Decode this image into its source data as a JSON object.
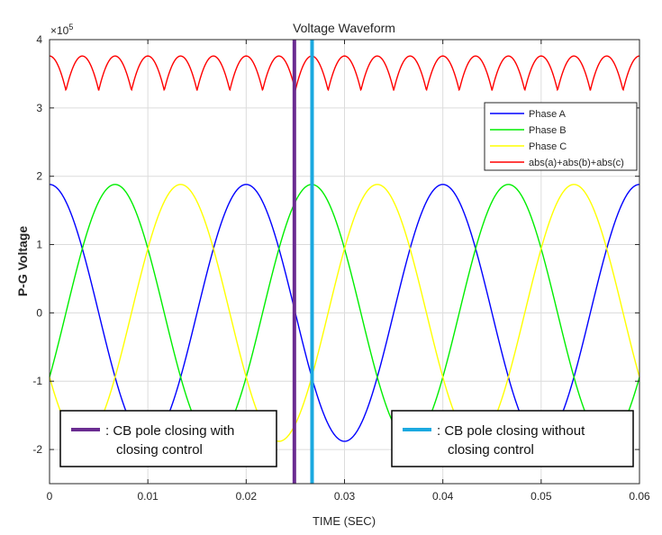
{
  "chart_data": {
    "type": "line",
    "title": "Voltage Waveform",
    "xlabel": "TIME (SEC)",
    "ylabel": "P-G Voltage",
    "y_exponent_label": "×10",
    "y_exponent_power": "5",
    "y_scale": 100000,
    "xlim": [
      0,
      0.06
    ],
    "ylim": [
      -250000,
      400000
    ],
    "x_ticks": [
      0,
      0.01,
      0.02,
      0.03,
      0.04,
      0.05,
      0.06
    ],
    "x_tick_labels": [
      "0",
      "0.01",
      "0.02",
      "0.03",
      "0.04",
      "0.05",
      "0.06"
    ],
    "y_ticks": [
      -200000,
      -100000,
      0,
      100000,
      200000,
      300000,
      400000
    ],
    "y_tick_labels": [
      "-2",
      "-1",
      "0",
      "1",
      "2",
      "3",
      "4"
    ],
    "grid": true,
    "legend_position": "right, upper-middle",
    "frequency_hz": 50,
    "amplitude": 188000,
    "series": [
      {
        "name": "Phase A",
        "color": "#0000ff",
        "phase_deg": 90
      },
      {
        "name": "Phase B",
        "color": "#00ee00",
        "phase_deg": -30
      },
      {
        "name": "Phase C",
        "color": "#ffff00",
        "phase_deg": 210
      },
      {
        "name": "abs(a)+abs(b)+abs(c)",
        "color": "#ff0000",
        "derived": "sum_of_abs"
      }
    ],
    "vertical_markers": [
      {
        "x": 0.0249,
        "color": "#6a2c91",
        "label_line1": ": CB pole closing with",
        "label_line2": "closing control"
      },
      {
        "x": 0.0267,
        "color": "#1ba9e0",
        "label_line1": ": CB pole closing without",
        "label_line2": "closing control"
      }
    ]
  }
}
